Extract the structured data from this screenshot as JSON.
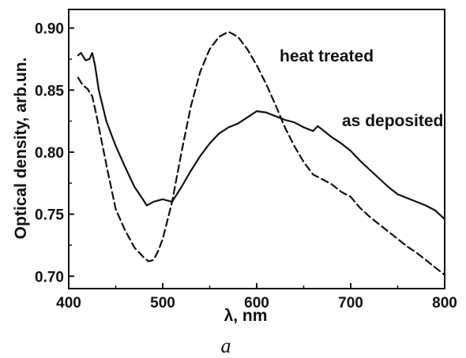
{
  "chart_data": {
    "type": "line",
    "xlabel": "λ, nm",
    "ylabel": "Optical density, arb.un.",
    "xlim": [
      400,
      800
    ],
    "ylim": [
      0.69,
      0.915
    ],
    "xticks": [
      400,
      500,
      600,
      700,
      800
    ],
    "xtick_labels": [
      "400",
      "500",
      "600",
      "700",
      "800"
    ],
    "yticks": [
      0.7,
      0.75,
      0.8,
      0.85,
      0.9
    ],
    "ytick_labels": [
      "0.70",
      "0.75",
      "0.80",
      "0.85",
      "0.90"
    ],
    "grid": false,
    "legend": "none",
    "series": [
      {
        "name": "as deposited",
        "style": "solid",
        "color": "#111111",
        "x": [
          410,
          413,
          418,
          422,
          425,
          428,
          432,
          440,
          450,
          460,
          470,
          478,
          483,
          490,
          500,
          510,
          520,
          530,
          540,
          550,
          560,
          570,
          580,
          590,
          600,
          610,
          620,
          630,
          640,
          650,
          660,
          665,
          670,
          680,
          690,
          700,
          710,
          720,
          730,
          740,
          750,
          760,
          770,
          780,
          790,
          800
        ],
        "y": [
          0.878,
          0.88,
          0.874,
          0.875,
          0.88,
          0.87,
          0.85,
          0.825,
          0.805,
          0.788,
          0.772,
          0.763,
          0.757,
          0.76,
          0.762,
          0.76,
          0.772,
          0.785,
          0.797,
          0.807,
          0.815,
          0.82,
          0.823,
          0.828,
          0.833,
          0.832,
          0.829,
          0.826,
          0.824,
          0.82,
          0.817,
          0.821,
          0.818,
          0.812,
          0.807,
          0.801,
          0.793,
          0.786,
          0.779,
          0.772,
          0.766,
          0.763,
          0.76,
          0.757,
          0.753,
          0.746
        ]
      },
      {
        "name": "heat treated",
        "style": "dashed",
        "color": "#111111",
        "x": [
          410,
          415,
          420,
          425,
          430,
          440,
          450,
          460,
          470,
          480,
          485,
          490,
          495,
          500,
          510,
          520,
          530,
          540,
          550,
          560,
          570,
          580,
          590,
          600,
          610,
          620,
          630,
          640,
          650,
          660,
          670,
          680,
          690,
          700,
          710,
          720,
          730,
          740,
          750,
          760,
          770,
          780,
          790,
          800
        ],
        "y": [
          0.86,
          0.854,
          0.851,
          0.845,
          0.828,
          0.79,
          0.754,
          0.737,
          0.723,
          0.715,
          0.712,
          0.713,
          0.72,
          0.73,
          0.76,
          0.8,
          0.837,
          0.865,
          0.883,
          0.893,
          0.897,
          0.893,
          0.883,
          0.87,
          0.855,
          0.838,
          0.82,
          0.805,
          0.792,
          0.782,
          0.778,
          0.774,
          0.768,
          0.764,
          0.755,
          0.748,
          0.742,
          0.736,
          0.73,
          0.724,
          0.719,
          0.713,
          0.707,
          0.701
        ]
      }
    ],
    "annotations": [
      {
        "text": "heat treated",
        "series": "heat treated"
      },
      {
        "text": "as deposited",
        "series": "as deposited"
      }
    ],
    "caption": "a"
  }
}
